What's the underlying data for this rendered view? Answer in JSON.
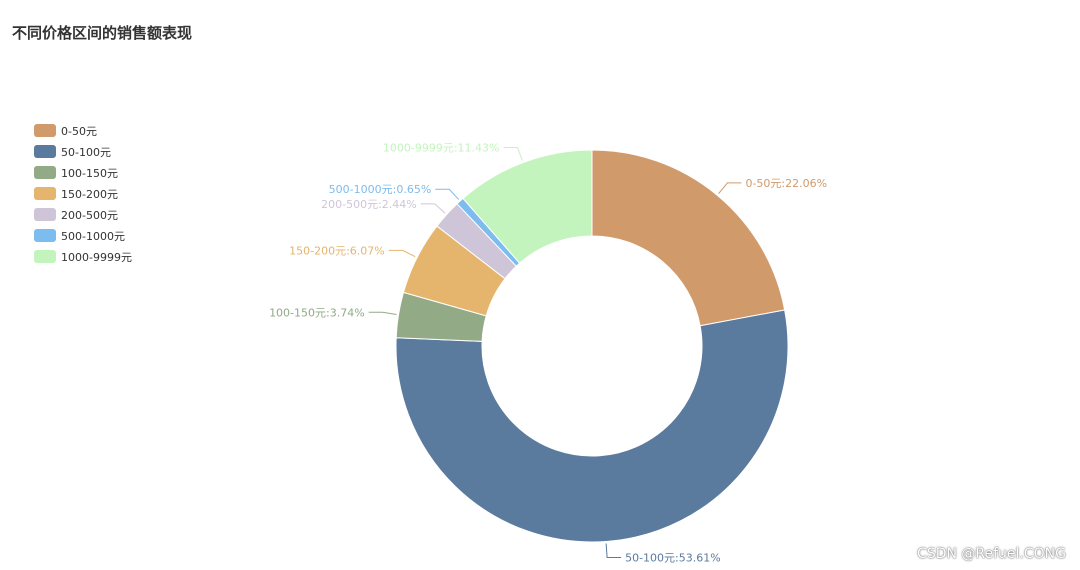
{
  "chart_data": {
    "type": "pie",
    "variant": "donut",
    "title": "不同价格区间的销售额表现",
    "start_angle_deg": 90,
    "legend_position": "top-left",
    "categories": [
      "0-50元",
      "50-100元",
      "100-150元",
      "150-200元",
      "200-500元",
      "500-1000元",
      "1000-9999元"
    ],
    "values": [
      22.06,
      53.61,
      3.74,
      6.07,
      2.44,
      0.65,
      11.43
    ],
    "labels": [
      "0-50元:22.06%",
      "50-100元:53.61%",
      "100-150元:3.74%",
      "150-200元:6.07%",
      "200-500元:2.44%",
      "500-1000元:0.65%",
      "1000-9999元:11.43%"
    ],
    "colors": [
      "#d19a6b",
      "#5a7a9e",
      "#92aa86",
      "#e5b56d",
      "#cfc5d8",
      "#7cbcee",
      "#c4f4be"
    ]
  },
  "watermark": "CSDN @Refuel.CONG"
}
